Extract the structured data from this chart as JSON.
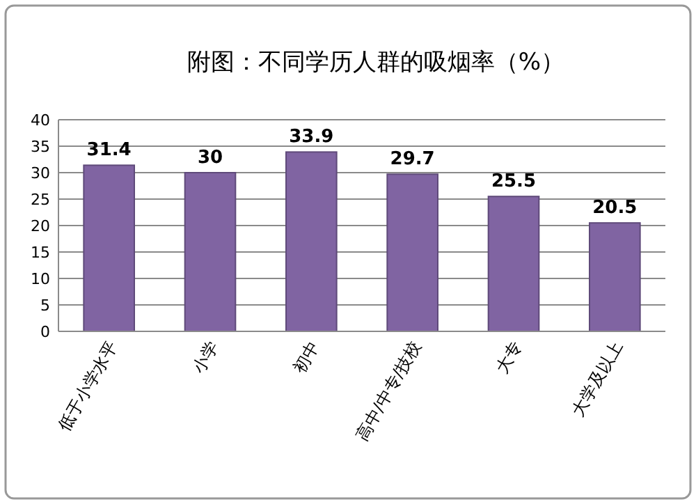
{
  "chart_data": {
    "type": "bar",
    "title": "附图：不同学历人群的吸烟率（%）",
    "categories": [
      "低于小学水平",
      "小学",
      "初中",
      "高中/中专/技校",
      "大专",
      "大学及以上"
    ],
    "values": [
      31.4,
      30,
      33.9,
      29.7,
      25.5,
      20.5
    ],
    "color": "#8064a2",
    "ylim": [
      0,
      40
    ],
    "yticks": [
      0,
      5,
      10,
      15,
      20,
      25,
      30,
      35,
      40
    ],
    "grid": "y",
    "data_labels": true
  }
}
